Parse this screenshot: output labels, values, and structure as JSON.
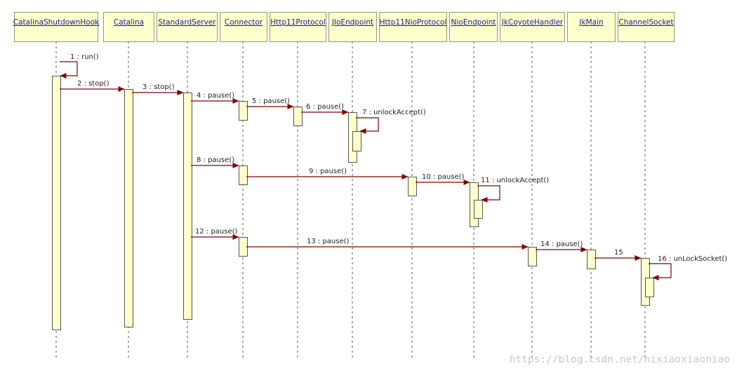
{
  "colors": {
    "box_fill": "#ffffcc",
    "box_stroke": "#999966",
    "activation_fill": "#ffffcc",
    "activation_stroke": "#555555",
    "lifeline": "#555555",
    "arrow": "#800000",
    "name_text": "#1a1aa0",
    "watermark": "#c8c8c8"
  },
  "lifelines": [
    {
      "id": "hook",
      "name": "CatalinaShutdownHook"
    },
    {
      "id": "catalina",
      "name": "Catalina"
    },
    {
      "id": "server",
      "name": "StandardServer"
    },
    {
      "id": "connector",
      "name": "Connector"
    },
    {
      "id": "http11",
      "name": "Http11Protocol"
    },
    {
      "id": "jio",
      "name": "JIoEndpoint"
    },
    {
      "id": "http11nio",
      "name": "Http11NioProtocol"
    },
    {
      "id": "nio",
      "name": "NioEndpoint"
    },
    {
      "id": "jkcoyote",
      "name": "JkCoyoteHandler"
    },
    {
      "id": "jkmain",
      "name": "JkMain"
    },
    {
      "id": "channel",
      "name": "ChannelSocket"
    }
  ],
  "messages": [
    {
      "label": "1 : run()",
      "from": "hook",
      "to": "hook"
    },
    {
      "label": "2 : stop()",
      "from": "hook",
      "to": "catalina"
    },
    {
      "label": "3 : stop()",
      "from": "catalina",
      "to": "server"
    },
    {
      "label": "4 : pause()",
      "from": "server",
      "to": "connector"
    },
    {
      "label": "5 : pause()",
      "from": "connector",
      "to": "http11"
    },
    {
      "label": "6 : pause()",
      "from": "http11",
      "to": "jio"
    },
    {
      "label": "7 : unlockAccept()",
      "from": "jio",
      "to": "jio"
    },
    {
      "label": "8 : pause()",
      "from": "server",
      "to": "connector"
    },
    {
      "label": "9 : pause()",
      "from": "connector",
      "to": "http11nio"
    },
    {
      "label": "10 : pause()",
      "from": "http11nio",
      "to": "nio"
    },
    {
      "label": "11 : unlockAccept()",
      "from": "nio",
      "to": "nio"
    },
    {
      "label": "12 : pause()",
      "from": "server",
      "to": "connector"
    },
    {
      "label": "13 : pause()",
      "from": "connector",
      "to": "jkcoyote"
    },
    {
      "label": "14 : pause()",
      "from": "jkcoyote",
      "to": "jkmain"
    },
    {
      "label": "15",
      "from": "jkmain",
      "to": "channel"
    },
    {
      "label": "16 : unLockSocket()",
      "from": "channel",
      "to": "channel"
    }
  ],
  "watermark": "https://blog.csdn.net/hixiaoxiaoniao"
}
